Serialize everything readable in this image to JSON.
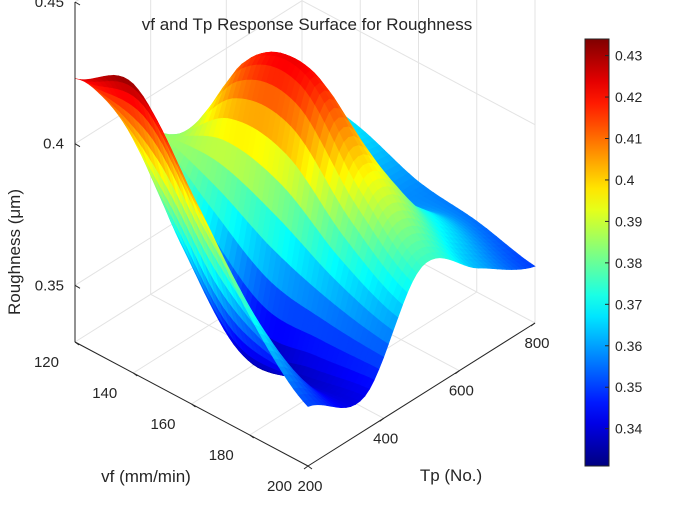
{
  "chart_data": {
    "type": "surface",
    "title": "vf and Tp Response Surface for Roughness",
    "xlabel": "Tp (No.)",
    "ylabel": "vf (mm/min)",
    "zlabel": "Roughness (μm)",
    "x_ticks": [
      "200",
      "400",
      "600",
      "800"
    ],
    "y_ticks": [
      "120",
      "140",
      "160",
      "180",
      "200"
    ],
    "z_ticks": [
      "0.35",
      "0.4",
      "0.45"
    ],
    "xlim": [
      200,
      800
    ],
    "ylim": [
      120,
      200
    ],
    "zlim": [
      0.33,
      0.45
    ],
    "grid": true,
    "colormap": "jet",
    "colorbar": {
      "range": [
        0.331,
        0.434
      ],
      "ticks": [
        "0.34",
        "0.35",
        "0.36",
        "0.37",
        "0.38",
        "0.39",
        "0.4",
        "0.41",
        "0.42",
        "0.43"
      ]
    },
    "surface": {
      "tp": [
        200,
        350,
        500,
        650,
        800
      ],
      "vf": [
        120,
        140,
        160,
        180,
        200
      ],
      "roughness": [
        [
          0.423,
          0.395,
          0.378,
          0.375,
          0.37
        ],
        [
          0.432,
          0.36,
          0.415,
          0.378,
          0.366
        ],
        [
          0.404,
          0.335,
          0.421,
          0.366,
          0.358
        ],
        [
          0.372,
          0.338,
          0.395,
          0.372,
          0.355
        ],
        [
          0.351,
          0.342,
          0.375,
          0.362,
          0.35
        ]
      ]
    }
  }
}
